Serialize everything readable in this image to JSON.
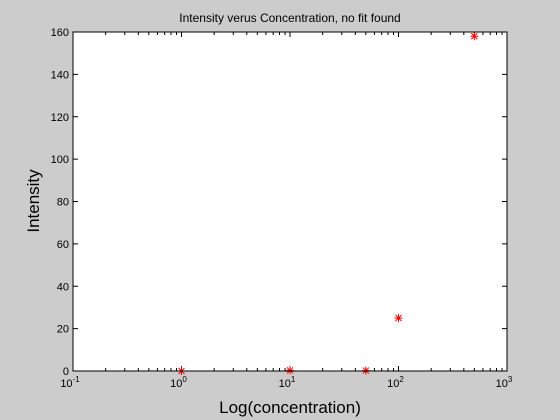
{
  "chart_data": {
    "type": "scatter",
    "title": "Intensity verus Concentration, no fit found",
    "xlabel": "Log(concentration)",
    "ylabel": "Intensity",
    "xscale": "log",
    "xlim": [
      0.1,
      1000
    ],
    "ylim": [
      0,
      160
    ],
    "xticks": [
      {
        "base": "10",
        "exp": "-1",
        "value": 0.1
      },
      {
        "base": "10",
        "exp": "0",
        "value": 1
      },
      {
        "base": "10",
        "exp": "1",
        "value": 10
      },
      {
        "base": "10",
        "exp": "2",
        "value": 100
      },
      {
        "base": "10",
        "exp": "3",
        "value": 1000
      }
    ],
    "yticks": [
      "0",
      "20",
      "40",
      "60",
      "80",
      "100",
      "120",
      "140",
      "160"
    ],
    "grid": false,
    "marker": "asterisk",
    "marker_color": "#ff0000",
    "points": [
      {
        "x": 1,
        "y": 0
      },
      {
        "x": 10,
        "y": 0.3
      },
      {
        "x": 50,
        "y": 0.2
      },
      {
        "x": 100,
        "y": 25
      },
      {
        "x": 500,
        "y": 158
      }
    ]
  },
  "colors": {
    "figure_background": "#cccccc",
    "axes_background": "#ffffff",
    "axis_color": "#000000"
  }
}
